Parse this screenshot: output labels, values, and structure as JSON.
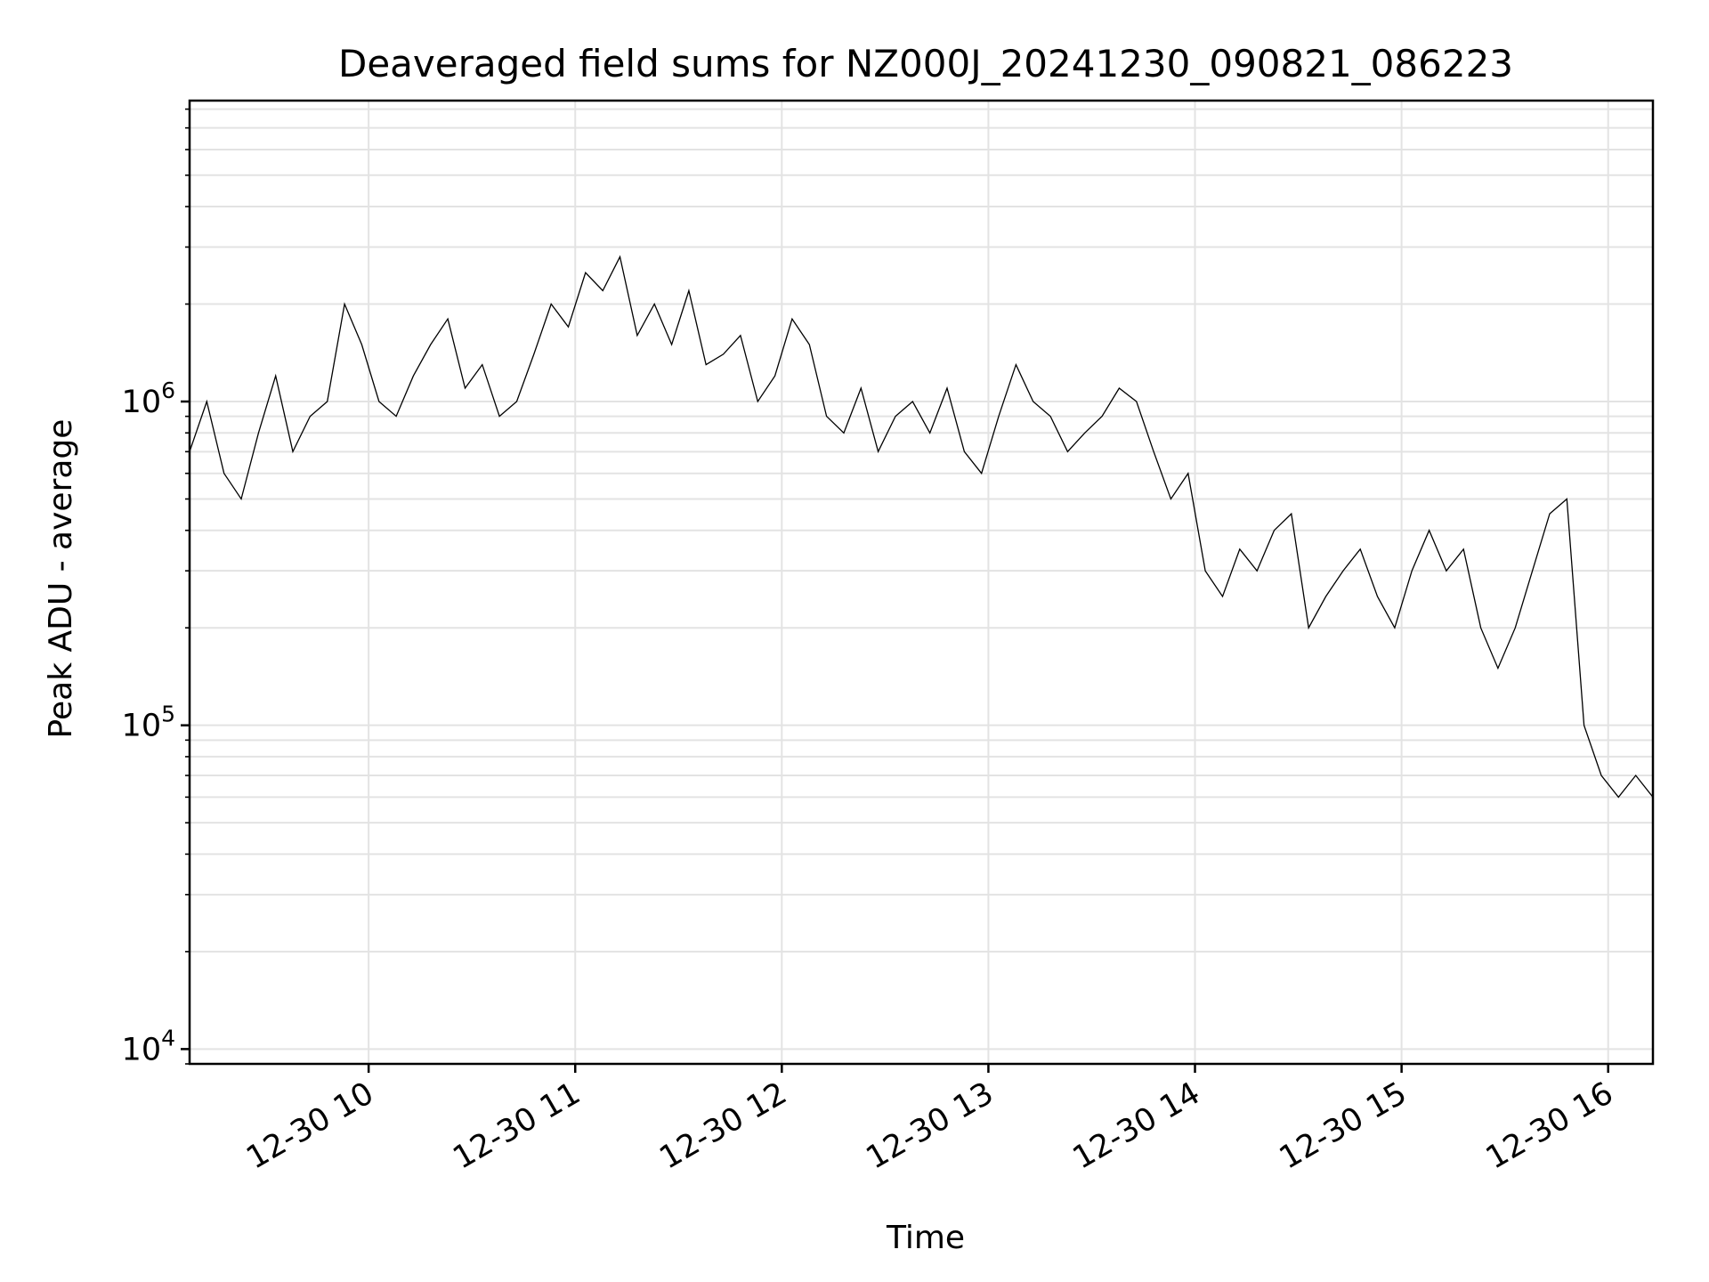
{
  "chart_data": {
    "type": "line",
    "title": "Deaveraged field sums for NZ000J_20241230_090821_086223",
    "xlabel": "Time",
    "ylabel": "Peak ADU - average",
    "y_scale": "log",
    "ylim": [
      9000,
      8500000
    ],
    "xlim": [
      "2024-12-30 09:08",
      "2024-12-30 16:13"
    ],
    "grid": true,
    "x_ticks": [
      {
        "t": "2024-12-30 10:00",
        "label": "12-30 10"
      },
      {
        "t": "2024-12-30 11:00",
        "label": "12-30 11"
      },
      {
        "t": "2024-12-30 12:00",
        "label": "12-30 12"
      },
      {
        "t": "2024-12-30 13:00",
        "label": "12-30 13"
      },
      {
        "t": "2024-12-30 14:00",
        "label": "12-30 14"
      },
      {
        "t": "2024-12-30 15:00",
        "label": "12-30 15"
      },
      {
        "t": "2024-12-30 16:00",
        "label": "12-30 16"
      }
    ],
    "y_ticks": [
      {
        "value": 10000,
        "base": "10",
        "exp": "4"
      },
      {
        "value": 100000,
        "base": "10",
        "exp": "5"
      },
      {
        "value": 1000000,
        "base": "10",
        "exp": "6"
      }
    ],
    "series_color": "#000000",
    "series": [
      {
        "x": [
          "09:08",
          "09:13",
          "09:18",
          "09:23",
          "09:28",
          "09:33",
          "09:38",
          "09:43",
          "09:48",
          "09:53",
          "09:58",
          "10:03",
          "10:08",
          "10:13",
          "10:18",
          "10:23",
          "10:28",
          "10:33",
          "10:38",
          "10:43",
          "10:48",
          "10:53",
          "10:58",
          "11:03",
          "11:08",
          "11:13",
          "11:18",
          "11:23",
          "11:28",
          "11:33",
          "11:38",
          "11:43",
          "11:48",
          "11:53",
          "11:58",
          "12:03",
          "12:08",
          "12:13",
          "12:18",
          "12:23",
          "12:28",
          "12:33",
          "12:38",
          "12:43",
          "12:48",
          "12:53",
          "12:58",
          "13:03",
          "13:08",
          "13:13",
          "13:18",
          "13:23",
          "13:28",
          "13:33",
          "13:38",
          "13:43",
          "13:48",
          "13:53",
          "13:58",
          "14:03",
          "14:08",
          "14:13",
          "14:18",
          "14:23",
          "14:28",
          "14:33",
          "14:38",
          "14:43",
          "14:48",
          "14:53",
          "14:58",
          "15:03",
          "15:08",
          "15:13",
          "15:18",
          "15:23",
          "15:28",
          "15:33",
          "15:38",
          "15:43",
          "15:48",
          "15:53",
          "15:58",
          "16:03",
          "16:08",
          "16:13"
        ],
        "values": [
          700000,
          1000000,
          600000,
          500000,
          800000,
          1200000,
          700000,
          900000,
          1000000,
          2000000,
          1500000,
          1000000,
          900000,
          1200000,
          1500000,
          1800000,
          1100000,
          1300000,
          900000,
          1000000,
          1400000,
          2000000,
          1700000,
          2500000,
          2200000,
          2800000,
          1600000,
          2000000,
          1500000,
          2200000,
          1300000,
          1400000,
          1600000,
          1000000,
          1200000,
          1800000,
          1500000,
          900000,
          800000,
          1100000,
          700000,
          900000,
          1000000,
          800000,
          1100000,
          700000,
          600000,
          900000,
          1300000,
          1000000,
          900000,
          700000,
          800000,
          900000,
          1100000,
          1000000,
          700000,
          500000,
          600000,
          300000,
          250000,
          350000,
          300000,
          400000,
          450000,
          200000,
          250000,
          300000,
          350000,
          250000,
          200000,
          300000,
          400000,
          300000,
          350000,
          200000,
          150000,
          200000,
          300000,
          450000,
          500000,
          100000,
          70000,
          60000,
          70000,
          60000
        ]
      }
    ]
  }
}
